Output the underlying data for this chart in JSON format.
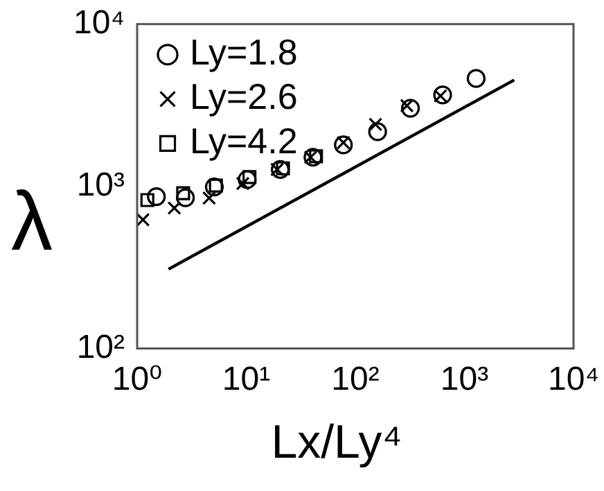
{
  "chart_data": {
    "type": "scatter",
    "ylabel": "λ",
    "xlabel": "Lx/Ly⁴",
    "log": "xy",
    "xlim": [
      1,
      10000
    ],
    "ylim": [
      100,
      10000
    ],
    "xticks": [
      {
        "value": 1,
        "label": "10⁰"
      },
      {
        "value": 10,
        "label": "10¹"
      },
      {
        "value": 100,
        "label": "10²"
      },
      {
        "value": 1000,
        "label": "10³"
      },
      {
        "value": 10000,
        "label": "10⁴"
      }
    ],
    "yticks": [
      {
        "value": 100,
        "label": "10²"
      },
      {
        "value": 1000,
        "label": "10³"
      },
      {
        "value": 10000,
        "label": "10⁴"
      }
    ],
    "grid": false,
    "legend": "top left",
    "series": [
      {
        "name": "Ly=1.8",
        "color": "#000000",
        "marker": "circle",
        "x": [
          1.5,
          2.77,
          5.1,
          10.2,
          20.5,
          40.9,
          77.7,
          160,
          320,
          631,
          1280
        ],
        "values": [
          863,
          850,
          990,
          1100,
          1270,
          1510,
          1800,
          2170,
          3030,
          3660,
          4620
        ]
      },
      {
        "name": "Ly=2.6",
        "color": "#000000",
        "marker": "cross",
        "x": [
          1.13,
          2.19,
          4.57,
          9.3,
          19.2,
          38.9,
          77.7,
          153,
          297,
          603
        ],
        "values": [
          622,
          734,
          845,
          1040,
          1270,
          1510,
          1860,
          2410,
          3140,
          3610
        ]
      },
      {
        "name": "Ly=4.2",
        "color": "#000000",
        "marker": "square",
        "x": [
          1.24,
          2.64,
          5.27,
          10.7,
          21.7,
          43.6
        ],
        "values": [
          822,
          906,
          1010,
          1140,
          1290,
          1530
        ]
      },
      {
        "type": "line",
        "color": "#000000",
        "marker": "none",
        "line_style": "solid",
        "x": [
          1.94,
          2860
        ],
        "values": [
          308,
          4520
        ]
      }
    ]
  }
}
